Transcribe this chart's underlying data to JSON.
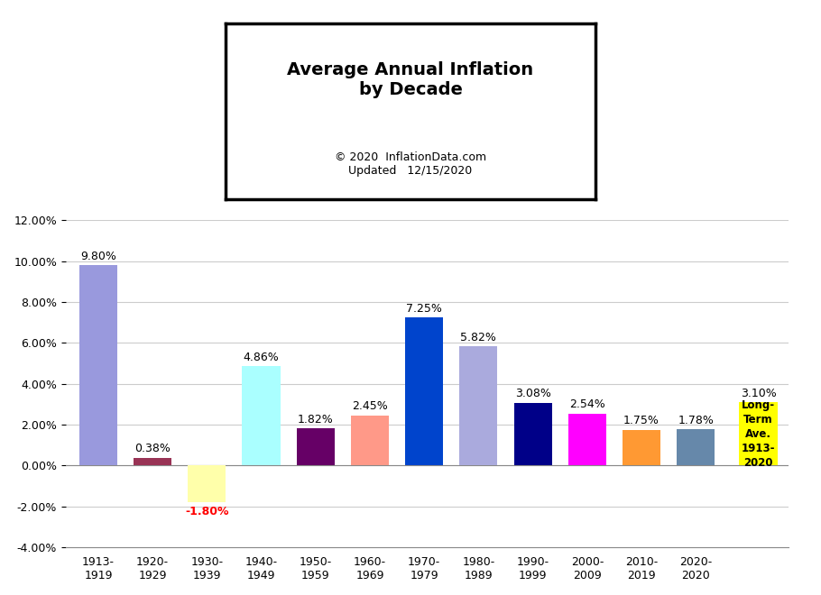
{
  "categories": [
    "1913-\n1919",
    "1920-\n1929",
    "1930-\n1939",
    "1940-\n1949",
    "1950-\n1959",
    "1960-\n1969",
    "1970-\n1979",
    "1980-\n1989",
    "1990-\n1999",
    "2000-\n2009",
    "2010-\n2019",
    "2020-\n2020"
  ],
  "values": [
    9.8,
    0.38,
    -1.8,
    4.86,
    1.82,
    2.45,
    7.25,
    5.82,
    3.08,
    2.54,
    1.75,
    1.78
  ],
  "bar_colors": [
    "#9999DD",
    "#993355",
    "#FFFFAA",
    "#AAFFFF",
    "#660066",
    "#FF9988",
    "#0044CC",
    "#AAAADD",
    "#000088",
    "#FF00FF",
    "#FF9933",
    "#6688AA"
  ],
  "long_term_value": 3.1,
  "long_term_label": "Long-\nTerm\nAve.\n1913-\n2020",
  "long_term_bg": "#FFFF00",
  "long_term_text_color": "#000000",
  "title_line1": "Average Annual Inflation",
  "title_line2": "by Decade",
  "subtitle1": "© 2020  InflationData.com",
  "subtitle2": "Updated   12/15/2020",
  "ylim": [
    -4.0,
    12.0
  ],
  "yticks": [
    -4.0,
    -2.0,
    0.0,
    2.0,
    4.0,
    6.0,
    8.0,
    10.0,
    12.0
  ],
  "background_color": "#FFFFFF",
  "grid_color": "#CCCCCC",
  "title_fontsize": 14,
  "subtitle_fontsize": 9,
  "label_fontsize": 9,
  "tick_fontsize": 9
}
